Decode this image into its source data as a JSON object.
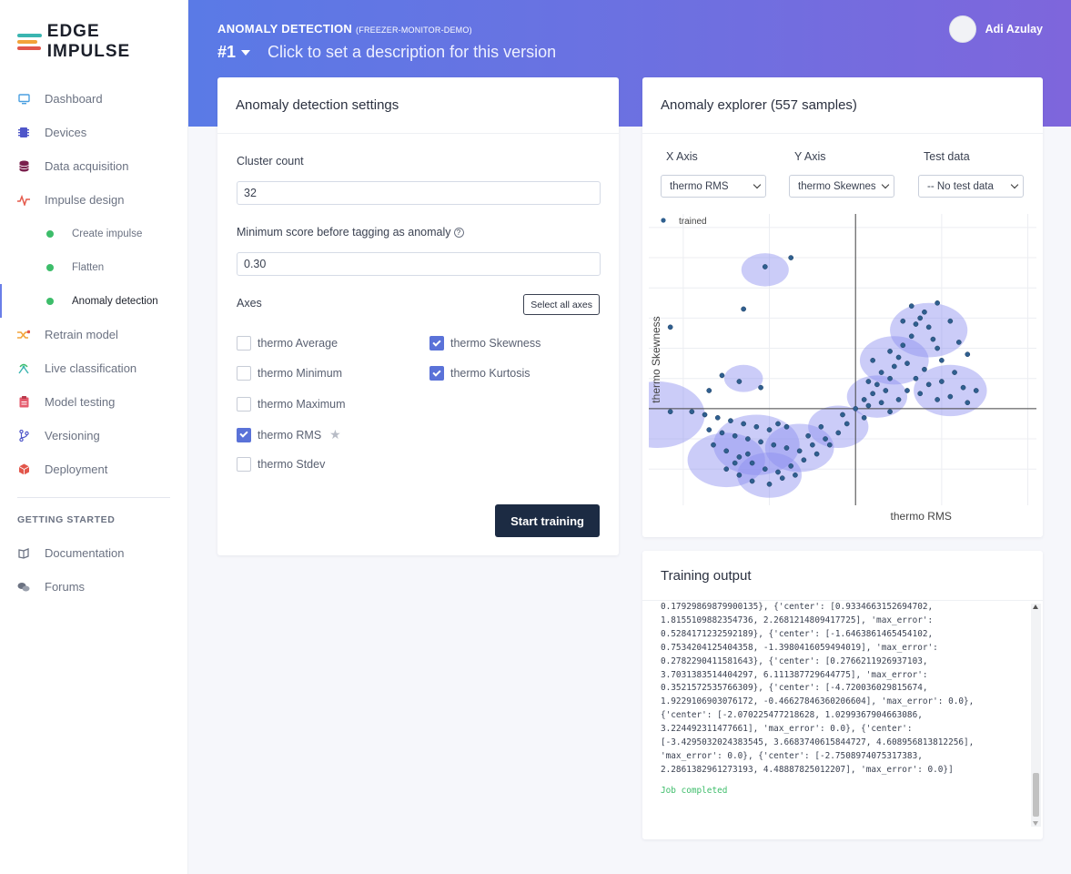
{
  "app": {
    "brand": "EDGE IMPULSE"
  },
  "sidebar": {
    "items": [
      {
        "label": "Dashboard",
        "icon": "monitor-icon"
      },
      {
        "label": "Devices",
        "icon": "chip-icon"
      },
      {
        "label": "Data acquisition",
        "icon": "database-icon"
      },
      {
        "label": "Impulse design",
        "icon": "pulse-icon"
      }
    ],
    "sub_items": [
      {
        "label": "Create impulse"
      },
      {
        "label": "Flatten"
      },
      {
        "label": "Anomaly detection",
        "active": true
      }
    ],
    "items2": [
      {
        "label": "Retrain model",
        "icon": "shuffle-icon"
      },
      {
        "label": "Live classification",
        "icon": "live-icon"
      },
      {
        "label": "Model testing",
        "icon": "clipboard-icon"
      },
      {
        "label": "Versioning",
        "icon": "branch-icon"
      },
      {
        "label": "Deployment",
        "icon": "box-icon"
      }
    ],
    "section_title": "GETTING STARTED",
    "items3": [
      {
        "label": "Documentation",
        "icon": "book-icon"
      },
      {
        "label": "Forums",
        "icon": "chat-icon"
      }
    ]
  },
  "header": {
    "title": "ANOMALY DETECTION",
    "project": "(FREEZER-MONITOR-DEMO)",
    "version": "#1",
    "version_desc": "Click to set a description for this version",
    "user_name": "Adi Azulay"
  },
  "settings": {
    "title": "Anomaly detection settings",
    "cluster_count_label": "Cluster count",
    "cluster_count_value": "32",
    "min_score_label": "Minimum score before tagging as anomaly",
    "min_score_value": "0.30",
    "axes_label": "Axes",
    "select_all_label": "Select all axes",
    "axes": [
      {
        "label": "thermo Average",
        "checked": false
      },
      {
        "label": "thermo Minimum",
        "checked": false
      },
      {
        "label": "thermo Maximum",
        "checked": false
      },
      {
        "label": "thermo RMS",
        "checked": true
      },
      {
        "label": "thermo Stdev",
        "checked": false
      },
      {
        "label": "thermo Skewness",
        "checked": true
      },
      {
        "label": "thermo Kurtosis",
        "checked": true
      }
    ],
    "start_label": "Start training"
  },
  "explorer": {
    "title": "Anomaly explorer (557 samples)",
    "x_axis_label": "X Axis",
    "y_axis_label": "Y Axis",
    "test_data_label": "Test data",
    "x_axis_value": "thermo RMS",
    "y_axis_value": "thermo Skewness",
    "test_data_value": "-- No test data"
  },
  "chart_data": {
    "type": "scatter",
    "title": "",
    "xlabel": "thermo RMS",
    "ylabel": "thermo Skewness",
    "legend": [
      "trained"
    ],
    "legend_position": "top-left",
    "grid": true,
    "point_color": "#2f5f8f",
    "cluster_color": "#8b8ef0",
    "clusters": [
      {
        "x": -2.1,
        "y": 4.6,
        "r": 0.55
      },
      {
        "x": -4.6,
        "y": -0.2,
        "r": 1.1
      },
      {
        "x": -2.6,
        "y": 1.0,
        "r": 0.45
      },
      {
        "x": -2.3,
        "y": -1.2,
        "r": 1.0
      },
      {
        "x": -1.3,
        "y": -1.3,
        "r": 0.8
      },
      {
        "x": -0.4,
        "y": -0.6,
        "r": 0.7
      },
      {
        "x": 0.5,
        "y": 0.4,
        "r": 0.7
      },
      {
        "x": 0.9,
        "y": 1.6,
        "r": 0.8
      },
      {
        "x": 1.7,
        "y": 2.6,
        "r": 0.9
      },
      {
        "x": 2.2,
        "y": 0.6,
        "r": 0.85
      },
      {
        "x": -3.0,
        "y": -1.7,
        "r": 0.9
      },
      {
        "x": -2.0,
        "y": -2.2,
        "r": 0.75
      }
    ],
    "points": [
      [
        -2.1,
        4.7
      ],
      [
        -1.5,
        5.0
      ],
      [
        -2.6,
        3.3
      ],
      [
        -4.3,
        2.7
      ],
      [
        -3.1,
        1.1
      ],
      [
        -3.4,
        0.6
      ],
      [
        -2.7,
        0.9
      ],
      [
        -2.2,
        0.7
      ],
      [
        -4.3,
        -0.1
      ],
      [
        -3.8,
        -0.1
      ],
      [
        -3.5,
        -0.2
      ],
      [
        -3.2,
        -0.3
      ],
      [
        -2.9,
        -0.4
      ],
      [
        -2.6,
        -0.5
      ],
      [
        -2.3,
        -0.6
      ],
      [
        -2.0,
        -0.7
      ],
      [
        -1.8,
        -0.5
      ],
      [
        -1.6,
        -0.6
      ],
      [
        -3.4,
        -0.7
      ],
      [
        -3.1,
        -0.8
      ],
      [
        -2.8,
        -0.9
      ],
      [
        -2.5,
        -1.0
      ],
      [
        -2.2,
        -1.1
      ],
      [
        -1.9,
        -1.2
      ],
      [
        -1.6,
        -1.3
      ],
      [
        -1.3,
        -1.4
      ],
      [
        -1.0,
        -1.2
      ],
      [
        -0.7,
        -1.0
      ],
      [
        -0.4,
        -0.8
      ],
      [
        -0.2,
        -0.5
      ],
      [
        -3.3,
        -1.2
      ],
      [
        -3.0,
        -1.4
      ],
      [
        -2.7,
        -1.6
      ],
      [
        -2.4,
        -1.8
      ],
      [
        -2.1,
        -2.0
      ],
      [
        -1.8,
        -2.1
      ],
      [
        -1.5,
        -1.9
      ],
      [
        -1.2,
        -1.7
      ],
      [
        -0.9,
        -1.5
      ],
      [
        -0.6,
        -1.2
      ],
      [
        -3.0,
        -2.0
      ],
      [
        -2.7,
        -2.2
      ],
      [
        -2.4,
        -2.4
      ],
      [
        -2.0,
        -2.5
      ],
      [
        -1.7,
        -2.3
      ],
      [
        -1.4,
        -2.2
      ],
      [
        -2.8,
        -1.8
      ],
      [
        -2.5,
        -1.5
      ],
      [
        -1.1,
        -0.9
      ],
      [
        -0.8,
        -0.6
      ],
      [
        0.0,
        0.0
      ],
      [
        0.2,
        0.3
      ],
      [
        0.4,
        0.5
      ],
      [
        0.3,
        0.1
      ],
      [
        0.6,
        0.2
      ],
      [
        0.5,
        0.8
      ],
      [
        0.7,
        0.6
      ],
      [
        0.8,
        1.0
      ],
      [
        0.6,
        1.2
      ],
      [
        0.9,
        1.4
      ],
      [
        1.0,
        1.7
      ],
      [
        0.8,
        1.9
      ],
      [
        1.1,
        2.1
      ],
      [
        1.2,
        1.5
      ],
      [
        1.3,
        2.4
      ],
      [
        1.4,
        2.8
      ],
      [
        1.5,
        3.0
      ],
      [
        1.6,
        3.2
      ],
      [
        1.7,
        2.7
      ],
      [
        1.8,
        2.3
      ],
      [
        1.9,
        2.0
      ],
      [
        2.0,
        1.6
      ],
      [
        1.6,
        1.3
      ],
      [
        1.4,
        1.0
      ],
      [
        1.7,
        0.8
      ],
      [
        2.0,
        0.9
      ],
      [
        2.3,
        1.2
      ],
      [
        2.5,
        0.7
      ],
      [
        2.2,
        0.4
      ],
      [
        1.9,
        0.3
      ],
      [
        1.5,
        0.5
      ],
      [
        2.6,
        0.2
      ],
      [
        2.8,
        0.6
      ],
      [
        1.2,
        0.6
      ],
      [
        1.0,
        0.3
      ],
      [
        0.8,
        -0.1
      ],
      [
        0.2,
        -0.3
      ],
      [
        -0.3,
        -0.2
      ],
      [
        1.1,
        2.9
      ],
      [
        1.3,
        3.4
      ],
      [
        1.9,
        3.5
      ],
      [
        2.2,
        2.9
      ],
      [
        2.4,
        2.2
      ],
      [
        2.6,
        1.8
      ],
      [
        0.4,
        1.6
      ],
      [
        0.3,
        0.9
      ]
    ]
  },
  "training": {
    "title": "Training output",
    "log": [
      "0.17929869879900135}, {'center': [0.9334663152694702,",
      "1.8155109882354736, 2.2681214809417725], 'max_error':",
      "0.5284171232592189}, {'center': [-1.6463861465454102,",
      "0.7534204125404358, -1.3980416059494019], 'max_error':",
      "0.2782290411581643}, {'center': [0.2766211926937103,",
      "3.7031383514404297, 6.111387729644775], 'max_error':",
      "0.3521572535766309}, {'center': [-4.720036029815674,",
      "1.9229106903076172, -0.46627846360206604], 'max_error': 0.0},",
      "{'center': [-2.070225477218628, 1.0299367904663086,",
      "3.224492311477661], 'max_error': 0.0}, {'center':",
      "[-3.4295032024383545, 3.6683740615844727, 4.608956813812256],",
      "'max_error': 0.0}, {'center': [-2.7508974075317383,",
      "2.2861382961273193, 4.48887825012207], 'max_error': 0.0}]"
    ],
    "status": "Job completed"
  }
}
